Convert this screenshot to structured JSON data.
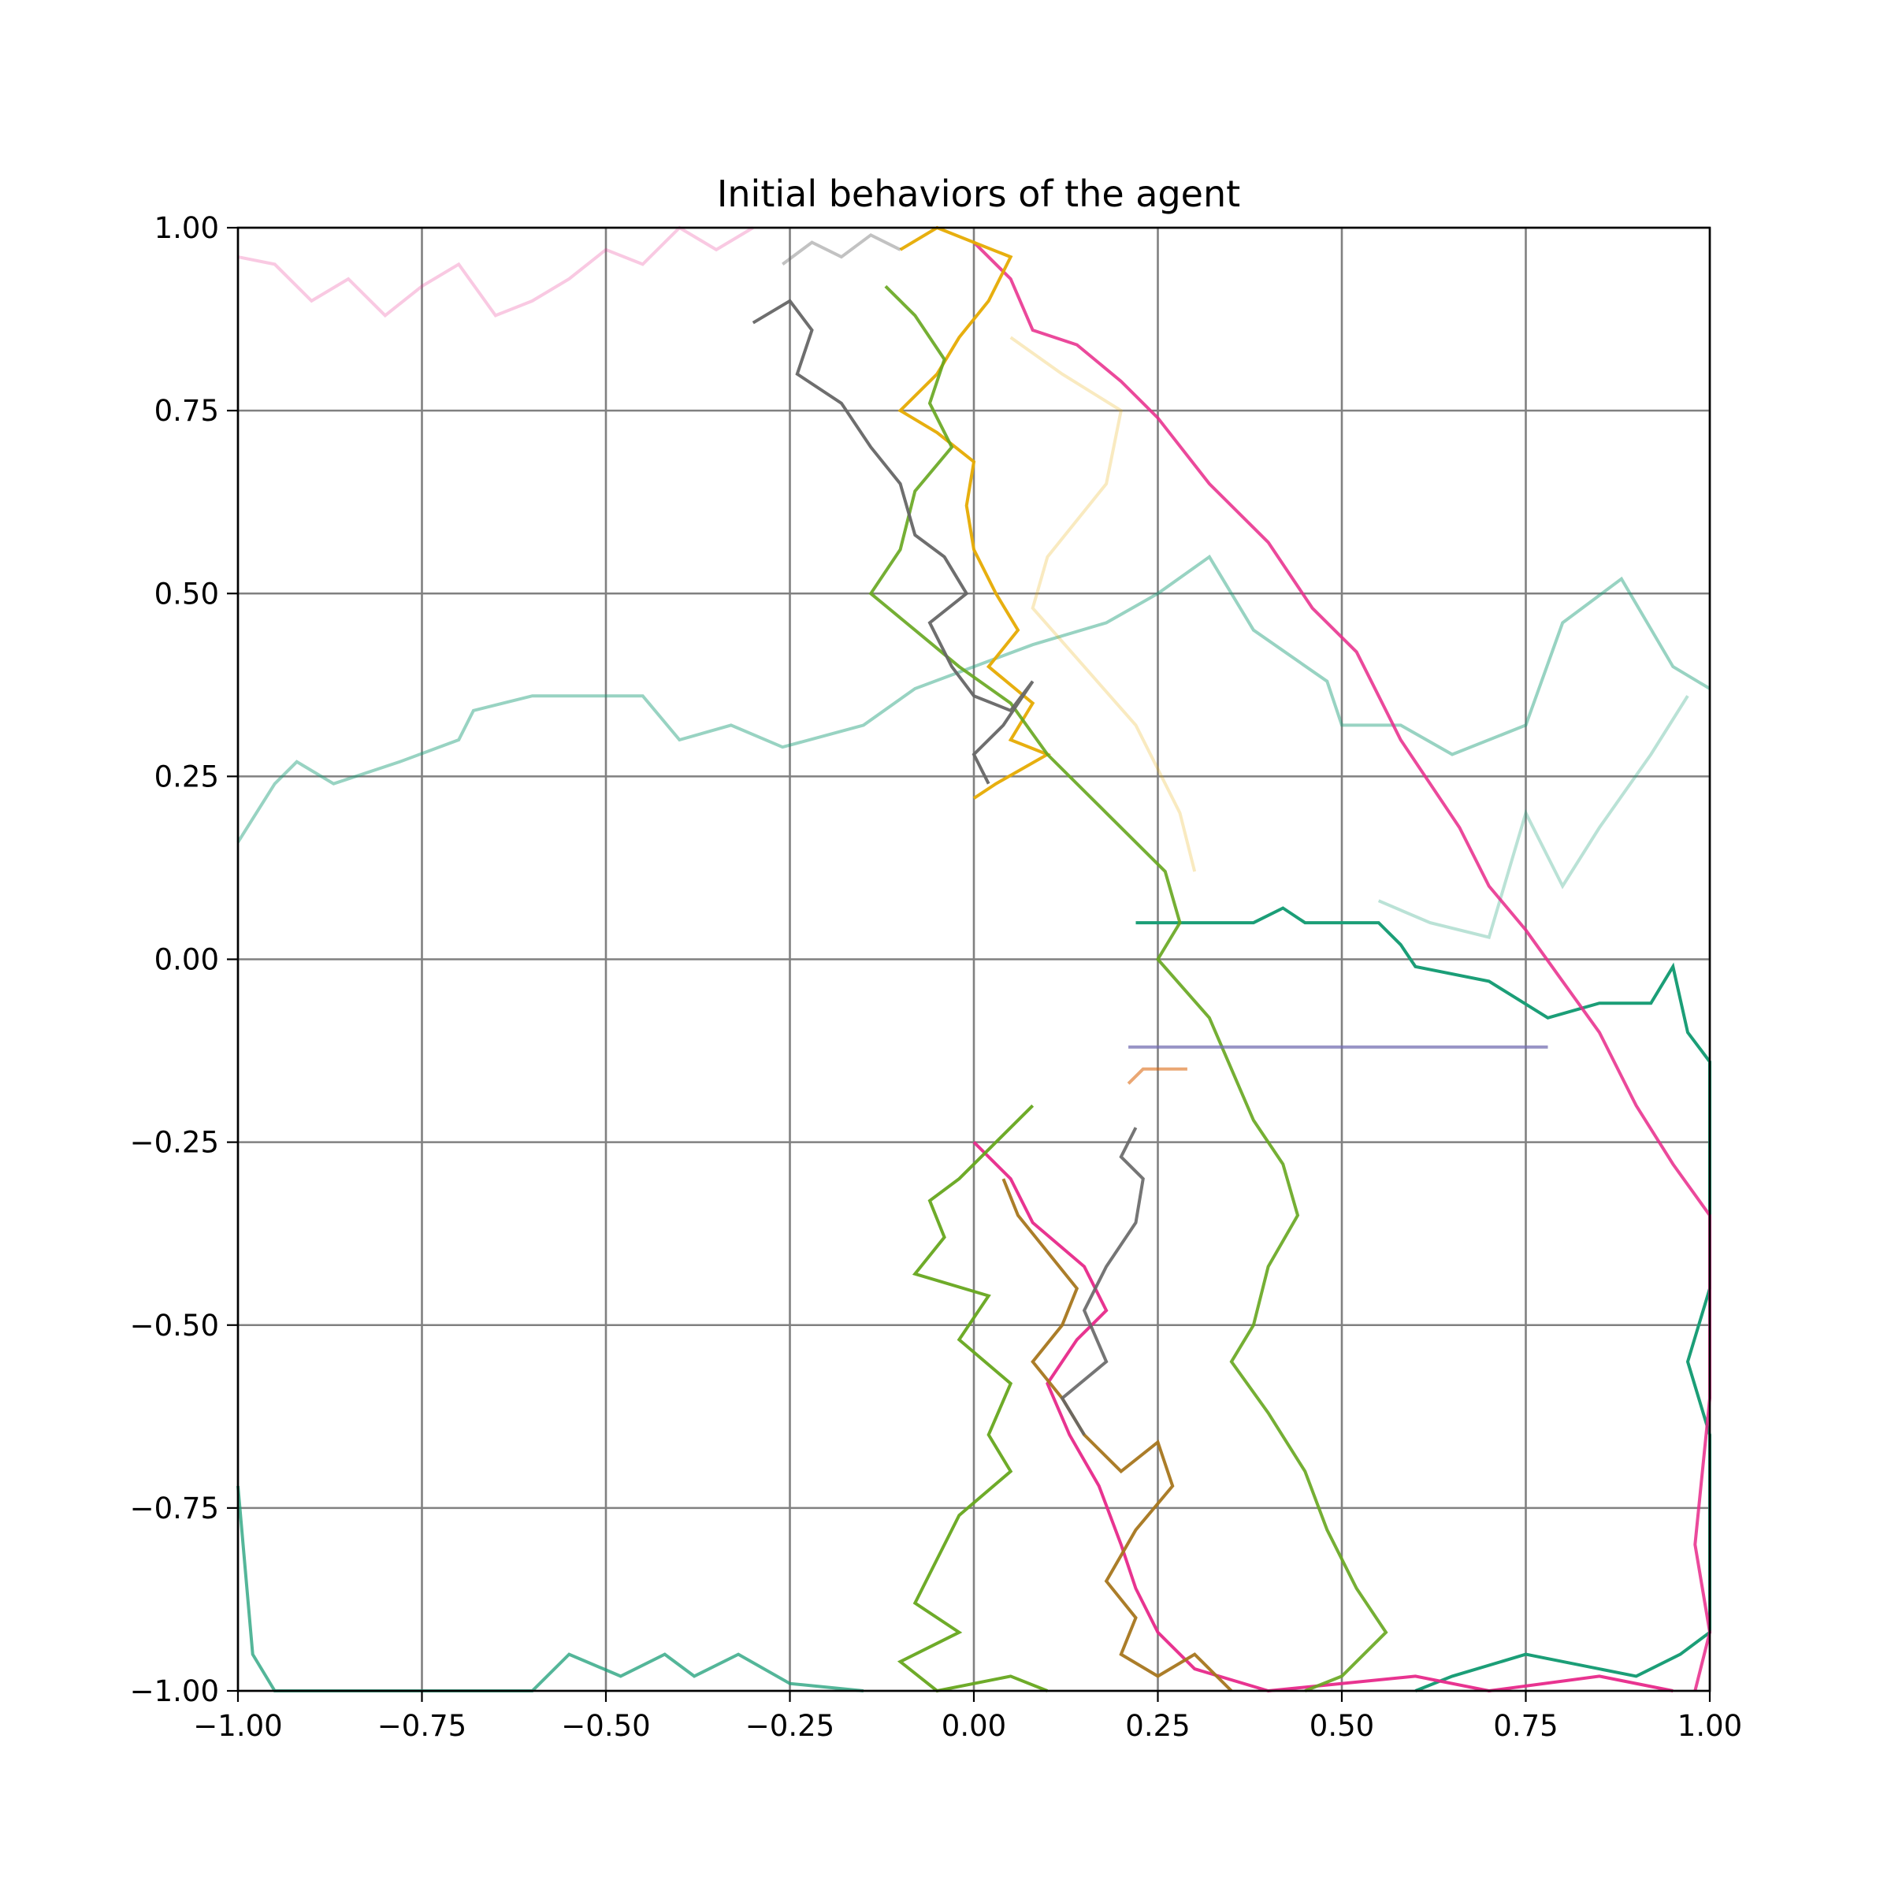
{
  "chart_data": {
    "type": "line",
    "title": "Initial behaviors of the agent",
    "xlabel": "",
    "ylabel": "",
    "xlim": [
      -1.0,
      1.0
    ],
    "ylim": [
      -1.0,
      1.0
    ],
    "grid": true,
    "legend": "none",
    "x_ticks": [
      "−1.00",
      "−0.75",
      "−0.50",
      "−0.25",
      "0.00",
      "0.25",
      "0.50",
      "0.75",
      "1.00"
    ],
    "y_ticks": [
      "−1.00",
      "−0.75",
      "−0.50",
      "−0.25",
      "0.00",
      "0.25",
      "0.50",
      "0.75",
      "1.00"
    ],
    "x_tick_values": [
      -1.0,
      -0.75,
      -0.5,
      -0.25,
      0.0,
      0.25,
      0.5,
      0.75,
      1.0
    ],
    "y_tick_values": [
      -1.0,
      -0.75,
      -0.5,
      -0.25,
      0.0,
      0.25,
      0.5,
      0.75,
      1.0
    ],
    "series": [
      {
        "color": "#1b9e77",
        "opacity": 0.45,
        "points": [
          [
            -1.0,
            0.16
          ],
          [
            -0.95,
            0.24
          ],
          [
            -0.92,
            0.27
          ],
          [
            -0.87,
            0.24
          ],
          [
            -0.78,
            0.27
          ],
          [
            -0.7,
            0.3
          ],
          [
            -0.68,
            0.34
          ],
          [
            -0.6,
            0.36
          ],
          [
            -0.45,
            0.36
          ],
          [
            -0.4,
            0.3
          ],
          [
            -0.33,
            0.32
          ],
          [
            -0.26,
            0.29
          ],
          [
            -0.15,
            0.32
          ],
          [
            -0.08,
            0.37
          ],
          [
            0.0,
            0.4
          ],
          [
            0.08,
            0.43
          ],
          [
            0.18,
            0.46
          ],
          [
            0.25,
            0.5
          ],
          [
            0.32,
            0.55
          ],
          [
            0.38,
            0.45
          ],
          [
            0.48,
            0.38
          ],
          [
            0.5,
            0.32
          ],
          [
            0.58,
            0.32
          ],
          [
            0.65,
            0.28
          ],
          [
            0.75,
            0.32
          ],
          [
            0.8,
            0.46
          ],
          [
            0.88,
            0.52
          ],
          [
            0.95,
            0.4
          ],
          [
            1.0,
            0.37
          ]
        ]
      },
      {
        "color": "#1b9e77",
        "opacity": 0.3,
        "points": [
          [
            0.55,
            0.08
          ],
          [
            0.62,
            0.05
          ],
          [
            0.7,
            0.03
          ],
          [
            0.75,
            0.2
          ],
          [
            0.8,
            0.1
          ],
          [
            0.85,
            0.18
          ],
          [
            0.92,
            0.28
          ],
          [
            0.97,
            0.36
          ]
        ]
      },
      {
        "color": "#1b9e77",
        "opacity": 1.0,
        "points": [
          [
            0.22,
            0.05
          ],
          [
            0.38,
            0.05
          ],
          [
            0.42,
            0.07
          ],
          [
            0.45,
            0.05
          ],
          [
            0.55,
            0.05
          ],
          [
            0.58,
            0.02
          ],
          [
            0.6,
            -0.01
          ],
          [
            0.7,
            -0.03
          ],
          [
            0.78,
            -0.08
          ],
          [
            0.85,
            -0.06
          ],
          [
            0.92,
            -0.06
          ],
          [
            0.95,
            -0.01
          ],
          [
            0.97,
            -0.1
          ],
          [
            1.0,
            -0.14
          ],
          [
            1.0,
            -0.45
          ],
          [
            0.97,
            -0.55
          ],
          [
            1.0,
            -0.65
          ],
          [
            1.0,
            -0.92
          ],
          [
            0.96,
            -0.95
          ],
          [
            0.9,
            -0.98
          ],
          [
            0.75,
            -0.95
          ],
          [
            0.65,
            -0.98
          ],
          [
            0.6,
            -1.0
          ]
        ]
      },
      {
        "color": "#1b9e77",
        "opacity": 0.75,
        "points": [
          [
            -1.0,
            -0.72
          ],
          [
            -0.98,
            -0.95
          ],
          [
            -0.95,
            -1.0
          ],
          [
            -0.6,
            -1.0
          ],
          [
            -0.55,
            -0.95
          ],
          [
            -0.48,
            -0.98
          ],
          [
            -0.42,
            -0.95
          ],
          [
            -0.38,
            -0.98
          ],
          [
            -0.32,
            -0.95
          ],
          [
            -0.25,
            -0.99
          ],
          [
            -0.15,
            -1.0
          ]
        ]
      },
      {
        "color": "#e7298a",
        "opacity": 0.25,
        "points": [
          [
            -1.0,
            0.96
          ],
          [
            -0.95,
            0.95
          ],
          [
            -0.9,
            0.9
          ],
          [
            -0.85,
            0.93
          ],
          [
            -0.8,
            0.88
          ],
          [
            -0.75,
            0.92
          ],
          [
            -0.7,
            0.95
          ],
          [
            -0.65,
            0.88
          ],
          [
            -0.6,
            0.9
          ],
          [
            -0.55,
            0.93
          ],
          [
            -0.5,
            0.97
          ],
          [
            -0.45,
            0.95
          ],
          [
            -0.4,
            1.0
          ],
          [
            -0.35,
            0.97
          ],
          [
            -0.3,
            1.0
          ]
        ]
      },
      {
        "color": "#e7298a",
        "opacity": 0.85,
        "points": [
          [
            0.0,
            0.98
          ],
          [
            0.05,
            0.93
          ],
          [
            0.08,
            0.86
          ],
          [
            0.14,
            0.84
          ],
          [
            0.2,
            0.79
          ],
          [
            0.25,
            0.74
          ],
          [
            0.32,
            0.65
          ],
          [
            0.4,
            0.57
          ],
          [
            0.46,
            0.48
          ],
          [
            0.52,
            0.42
          ],
          [
            0.55,
            0.36
          ],
          [
            0.58,
            0.3
          ],
          [
            0.62,
            0.24
          ],
          [
            0.66,
            0.18
          ],
          [
            0.7,
            0.1
          ],
          [
            0.75,
            0.04
          ],
          [
            0.8,
            -0.03
          ],
          [
            0.85,
            -0.1
          ],
          [
            0.9,
            -0.2
          ],
          [
            0.95,
            -0.28
          ],
          [
            1.0,
            -0.35
          ],
          [
            1.0,
            -0.6
          ],
          [
            0.98,
            -0.8
          ],
          [
            1.0,
            -0.92
          ],
          [
            0.98,
            -1.0
          ]
        ]
      },
      {
        "color": "#e7298a",
        "opacity": 0.95,
        "points": [
          [
            0.0,
            -0.25
          ],
          [
            0.05,
            -0.3
          ],
          [
            0.08,
            -0.36
          ],
          [
            0.15,
            -0.42
          ],
          [
            0.18,
            -0.48
          ],
          [
            0.14,
            -0.52
          ],
          [
            0.1,
            -0.58
          ],
          [
            0.13,
            -0.65
          ],
          [
            0.17,
            -0.72
          ],
          [
            0.2,
            -0.8
          ],
          [
            0.22,
            -0.86
          ],
          [
            0.25,
            -0.92
          ],
          [
            0.3,
            -0.97
          ],
          [
            0.4,
            -1.0
          ],
          [
            0.6,
            -0.98
          ],
          [
            0.7,
            -1.0
          ],
          [
            0.85,
            -0.98
          ],
          [
            0.95,
            -1.0
          ]
        ]
      },
      {
        "color": "#e6ab02",
        "opacity": 0.95,
        "points": [
          [
            -0.1,
            0.97
          ],
          [
            -0.05,
            1.0
          ],
          [
            0.0,
            0.98
          ],
          [
            0.05,
            0.96
          ],
          [
            0.02,
            0.9
          ],
          [
            -0.02,
            0.85
          ],
          [
            -0.05,
            0.8
          ],
          [
            -0.1,
            0.75
          ],
          [
            -0.05,
            0.72
          ],
          [
            0.0,
            0.68
          ],
          [
            -0.01,
            0.62
          ],
          [
            0.0,
            0.56
          ],
          [
            0.03,
            0.5
          ],
          [
            0.06,
            0.45
          ],
          [
            0.02,
            0.4
          ],
          [
            0.08,
            0.35
          ],
          [
            0.05,
            0.3
          ],
          [
            0.1,
            0.28
          ],
          [
            0.03,
            0.24
          ],
          [
            0.0,
            0.22
          ]
        ]
      },
      {
        "color": "#e6ab02",
        "opacity": 0.25,
        "points": [
          [
            0.05,
            0.85
          ],
          [
            0.12,
            0.8
          ],
          [
            0.2,
            0.75
          ],
          [
            0.18,
            0.65
          ],
          [
            0.1,
            0.55
          ],
          [
            0.08,
            0.48
          ],
          [
            0.15,
            0.4
          ],
          [
            0.22,
            0.32
          ],
          [
            0.28,
            0.2
          ],
          [
            0.3,
            0.12
          ]
        ]
      },
      {
        "color": "#66a61e",
        "opacity": 0.9,
        "points": [
          [
            -0.12,
            0.92
          ],
          [
            -0.08,
            0.88
          ],
          [
            -0.04,
            0.82
          ],
          [
            -0.06,
            0.76
          ],
          [
            -0.03,
            0.7
          ],
          [
            -0.08,
            0.64
          ],
          [
            -0.1,
            0.56
          ],
          [
            -0.14,
            0.5
          ],
          [
            -0.08,
            0.45
          ],
          [
            -0.02,
            0.4
          ],
          [
            0.05,
            0.35
          ],
          [
            0.1,
            0.28
          ],
          [
            0.18,
            0.2
          ],
          [
            0.26,
            0.12
          ],
          [
            0.28,
            0.05
          ],
          [
            0.25,
            0.0
          ],
          [
            0.32,
            -0.08
          ],
          [
            0.35,
            -0.15
          ],
          [
            0.38,
            -0.22
          ],
          [
            0.42,
            -0.28
          ],
          [
            0.44,
            -0.35
          ],
          [
            0.4,
            -0.42
          ],
          [
            0.38,
            -0.5
          ],
          [
            0.35,
            -0.55
          ],
          [
            0.4,
            -0.62
          ],
          [
            0.45,
            -0.7
          ],
          [
            0.48,
            -0.78
          ],
          [
            0.52,
            -0.86
          ],
          [
            0.56,
            -0.92
          ],
          [
            0.5,
            -0.98
          ],
          [
            0.45,
            -1.0
          ]
        ]
      },
      {
        "color": "#66a61e",
        "opacity": 0.95,
        "points": [
          [
            0.08,
            -0.2
          ],
          [
            0.02,
            -0.26
          ],
          [
            -0.02,
            -0.3
          ],
          [
            -0.06,
            -0.33
          ],
          [
            -0.04,
            -0.38
          ],
          [
            -0.08,
            -0.43
          ],
          [
            0.02,
            -0.46
          ],
          [
            -0.02,
            -0.52
          ],
          [
            0.05,
            -0.58
          ],
          [
            0.02,
            -0.65
          ],
          [
            0.05,
            -0.7
          ],
          [
            -0.02,
            -0.76
          ],
          [
            -0.05,
            -0.82
          ],
          [
            -0.08,
            -0.88
          ],
          [
            -0.02,
            -0.92
          ],
          [
            -0.1,
            -0.96
          ],
          [
            -0.05,
            -1.0
          ],
          [
            0.05,
            -0.98
          ],
          [
            0.1,
            -1.0
          ]
        ]
      },
      {
        "color": "#a6761d",
        "opacity": 0.95,
        "points": [
          [
            0.04,
            -0.3
          ],
          [
            0.06,
            -0.35
          ],
          [
            0.1,
            -0.4
          ],
          [
            0.14,
            -0.45
          ],
          [
            0.12,
            -0.5
          ],
          [
            0.08,
            -0.55
          ],
          [
            0.12,
            -0.6
          ],
          [
            0.15,
            -0.65
          ],
          [
            0.2,
            -0.7
          ],
          [
            0.25,
            -0.66
          ],
          [
            0.27,
            -0.72
          ],
          [
            0.22,
            -0.78
          ],
          [
            0.18,
            -0.85
          ],
          [
            0.22,
            -0.9
          ],
          [
            0.2,
            -0.95
          ],
          [
            0.25,
            -0.98
          ],
          [
            0.3,
            -0.95
          ],
          [
            0.35,
            -1.0
          ]
        ]
      },
      {
        "color": "#666666",
        "opacity": 0.95,
        "points": [
          [
            -0.3,
            0.87
          ],
          [
            -0.25,
            0.9
          ],
          [
            -0.22,
            0.86
          ],
          [
            -0.24,
            0.8
          ],
          [
            -0.18,
            0.76
          ],
          [
            -0.14,
            0.7
          ],
          [
            -0.1,
            0.65
          ],
          [
            -0.08,
            0.58
          ],
          [
            -0.04,
            0.55
          ],
          [
            -0.01,
            0.5
          ],
          [
            -0.06,
            0.46
          ],
          [
            -0.03,
            0.4
          ],
          [
            0.0,
            0.36
          ],
          [
            0.05,
            0.34
          ],
          [
            0.08,
            0.38
          ],
          [
            0.04,
            0.32
          ],
          [
            0.0,
            0.28
          ],
          [
            0.02,
            0.24
          ]
        ]
      },
      {
        "color": "#666666",
        "opacity": 0.9,
        "points": [
          [
            0.22,
            -0.23
          ],
          [
            0.2,
            -0.27
          ],
          [
            0.23,
            -0.3
          ],
          [
            0.22,
            -0.36
          ],
          [
            0.18,
            -0.42
          ],
          [
            0.15,
            -0.48
          ],
          [
            0.18,
            -0.55
          ],
          [
            0.12,
            -0.6
          ],
          [
            0.15,
            -0.65
          ]
        ]
      },
      {
        "color": "#666666",
        "opacity": 0.4,
        "points": [
          [
            -0.26,
            0.95
          ],
          [
            -0.22,
            0.98
          ],
          [
            -0.18,
            0.96
          ],
          [
            -0.14,
            0.99
          ],
          [
            -0.1,
            0.97
          ]
        ]
      },
      {
        "color": "#7570b3",
        "opacity": 0.75,
        "points": [
          [
            0.21,
            -0.12
          ],
          [
            0.55,
            -0.12
          ],
          [
            0.78,
            -0.12
          ]
        ]
      },
      {
        "color": "#d95f02",
        "opacity": 0.55,
        "points": [
          [
            0.21,
            -0.17
          ],
          [
            0.23,
            -0.15
          ],
          [
            0.29,
            -0.15
          ]
        ]
      }
    ]
  }
}
